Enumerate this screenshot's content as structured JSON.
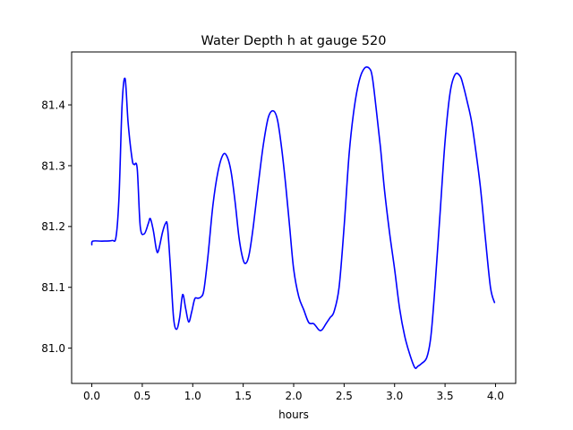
{
  "chart_data": {
    "type": "line",
    "title": "Water Depth h at gauge 520",
    "xlabel": "hours",
    "ylabel": "",
    "xlim": [
      -0.2,
      4.2
    ],
    "ylim": [
      80.942,
      81.487
    ],
    "xticks": [
      0.0,
      0.5,
      1.0,
      1.5,
      2.0,
      2.5,
      3.0,
      3.5,
      4.0
    ],
    "xtick_labels": [
      "0.0",
      "0.5",
      "1.0",
      "1.5",
      "2.0",
      "2.5",
      "3.0",
      "3.5",
      "4.0"
    ],
    "yticks": [
      81.0,
      81.1,
      81.2,
      81.3,
      81.4
    ],
    "ytick_labels": [
      "81.0",
      "81.1",
      "81.2",
      "81.3",
      "81.4"
    ],
    "grid": false,
    "series": [
      {
        "color": "#0000ff",
        "x": [
          0.0,
          0.01,
          0.1,
          0.2,
          0.24,
          0.27,
          0.3,
          0.33,
          0.36,
          0.4,
          0.42,
          0.45,
          0.48,
          0.52,
          0.56,
          0.58,
          0.61,
          0.64,
          0.66,
          0.7,
          0.73,
          0.75,
          0.78,
          0.81,
          0.84,
          0.87,
          0.9,
          0.93,
          0.96,
          0.99,
          1.02,
          1.05,
          1.08,
          1.11,
          1.15,
          1.2,
          1.25,
          1.3,
          1.34,
          1.38,
          1.42,
          1.46,
          1.5,
          1.53,
          1.56,
          1.6,
          1.65,
          1.7,
          1.75,
          1.8,
          1.84,
          1.88,
          1.92,
          1.96,
          2.0,
          2.05,
          2.1,
          2.15,
          2.2,
          2.25,
          2.28,
          2.32,
          2.36,
          2.4,
          2.45,
          2.5,
          2.55,
          2.6,
          2.65,
          2.7,
          2.75,
          2.78,
          2.82,
          2.86,
          2.9,
          2.95,
          3.0,
          3.05,
          3.1,
          3.15,
          3.2,
          3.23,
          3.27,
          3.32,
          3.36,
          3.4,
          3.45,
          3.5,
          3.55,
          3.6,
          3.65,
          3.68,
          3.72,
          3.76,
          3.8,
          3.85,
          3.9,
          3.95,
          3.99
        ],
        "y": [
          81.17,
          81.176,
          81.176,
          81.177,
          81.183,
          81.25,
          81.4,
          81.443,
          81.37,
          81.31,
          81.302,
          81.295,
          81.2,
          81.188,
          81.205,
          81.213,
          81.193,
          81.162,
          81.16,
          81.19,
          81.205,
          81.2,
          81.13,
          81.05,
          81.031,
          81.05,
          81.088,
          81.065,
          81.043,
          81.06,
          81.081,
          81.082,
          81.084,
          81.095,
          81.15,
          81.235,
          81.29,
          81.318,
          81.315,
          81.29,
          81.24,
          81.18,
          81.145,
          81.14,
          81.155,
          81.2,
          81.27,
          81.335,
          81.38,
          81.39,
          81.375,
          81.33,
          81.27,
          81.2,
          81.13,
          81.085,
          81.063,
          81.042,
          81.04,
          81.03,
          81.03,
          81.04,
          81.05,
          81.06,
          81.1,
          81.2,
          81.32,
          81.395,
          81.44,
          81.46,
          81.46,
          81.445,
          81.39,
          81.33,
          81.26,
          81.19,
          81.13,
          81.065,
          81.02,
          80.99,
          80.968,
          80.97,
          80.975,
          80.985,
          81.02,
          81.1,
          81.22,
          81.34,
          81.42,
          81.45,
          81.447,
          81.432,
          81.405,
          81.375,
          81.33,
          81.265,
          81.18,
          81.1,
          81.075
        ]
      }
    ]
  }
}
